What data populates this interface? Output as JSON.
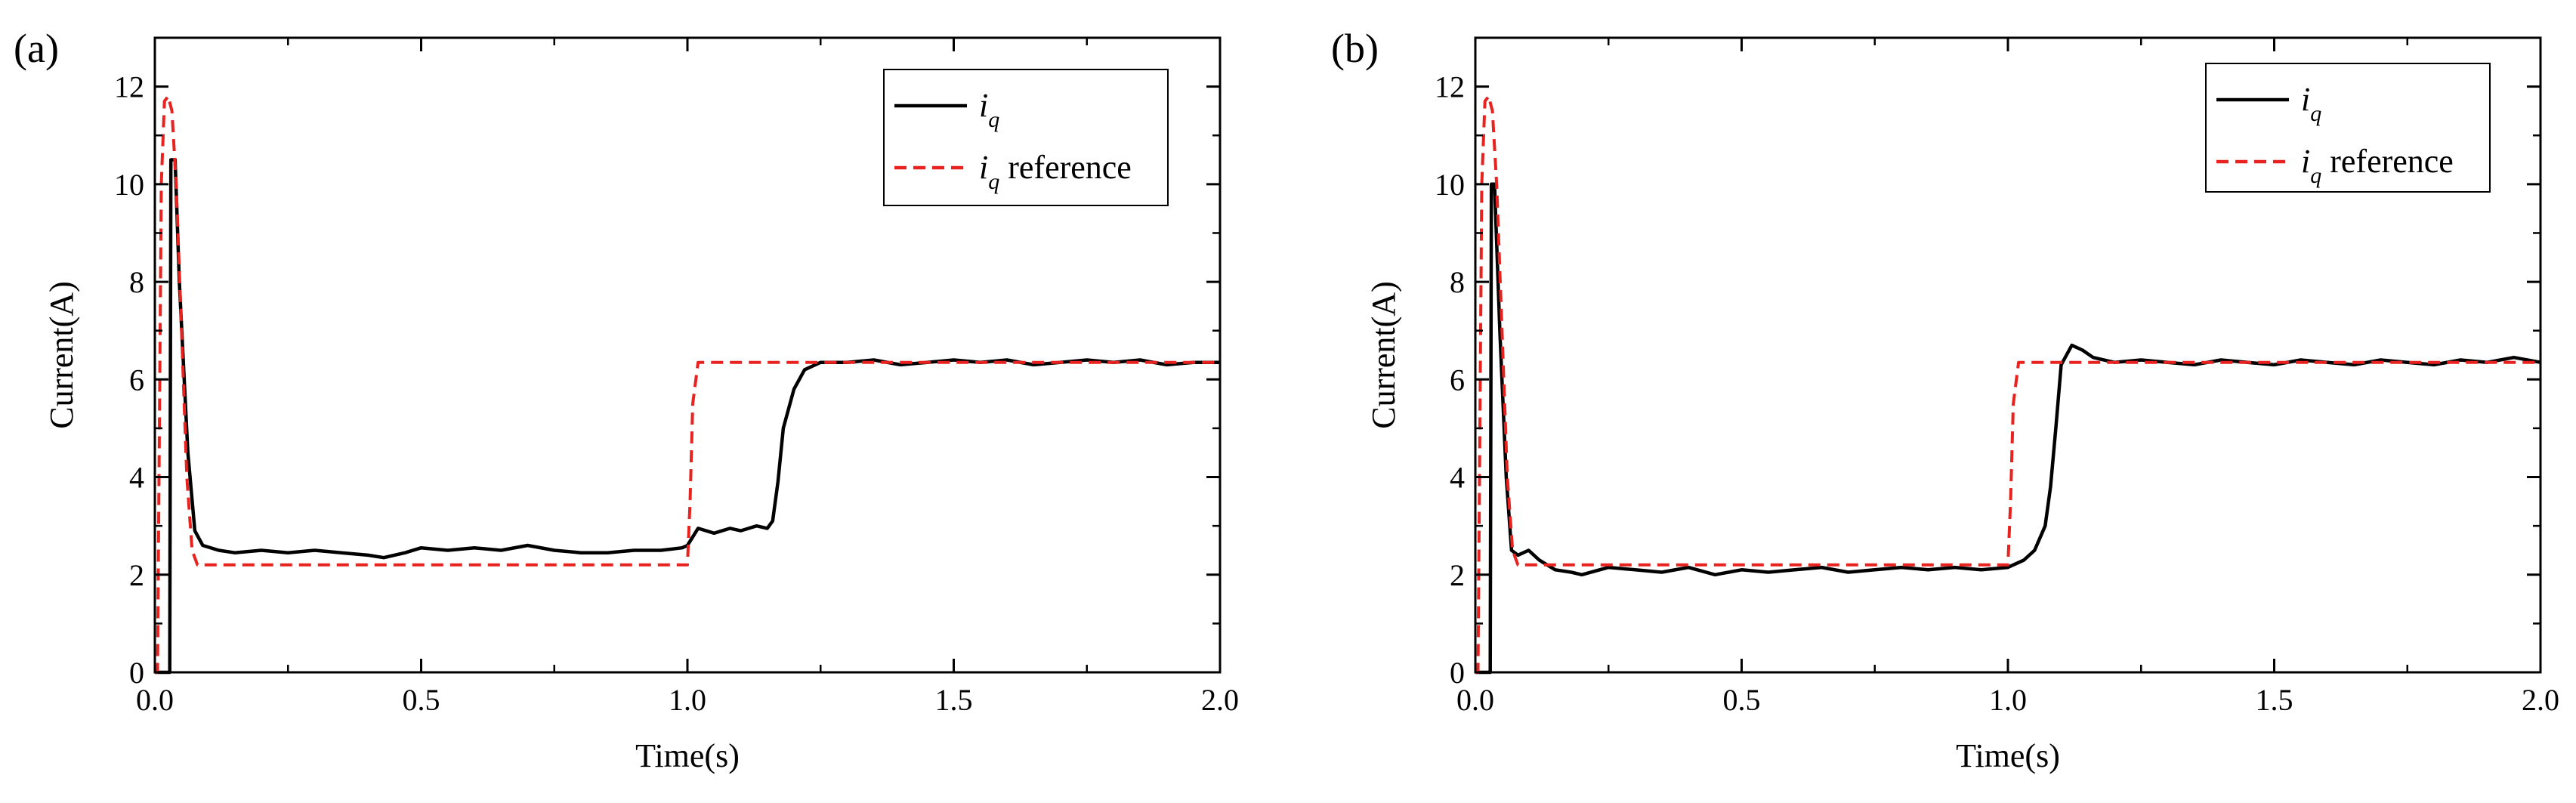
{
  "chart_data": [
    {
      "type": "line",
      "panel_label": "(a)",
      "xlabel": "Time(s)",
      "ylabel": "Current(A)",
      "xlim": [
        0,
        2.0
      ],
      "ylim": [
        0,
        13
      ],
      "xticks": [
        0.0,
        0.5,
        1.0,
        1.5,
        2.0
      ],
      "xtick_labels": [
        "0.0",
        "0.5",
        "1.0",
        "1.5",
        "2.0"
      ],
      "yticks": [
        0,
        2,
        4,
        6,
        8,
        10,
        12
      ],
      "ytick_labels": [
        "0",
        "2",
        "4",
        "6",
        "8",
        "10",
        "12"
      ],
      "legend_position": "top-right",
      "series": [
        {
          "name": "i_q",
          "legend_var": "i",
          "legend_sub": "q",
          "legend_suffix": "",
          "color": "#000000",
          "style": "solid",
          "x": [
            0.0,
            0.028,
            0.03,
            0.038,
            0.046,
            0.062,
            0.075,
            0.09,
            0.12,
            0.15,
            0.2,
            0.25,
            0.3,
            0.35,
            0.4,
            0.43,
            0.47,
            0.5,
            0.55,
            0.6,
            0.65,
            0.7,
            0.75,
            0.8,
            0.85,
            0.9,
            0.95,
            0.99,
            1.0,
            1.02,
            1.05,
            1.08,
            1.1,
            1.13,
            1.15,
            1.16,
            1.17,
            1.18,
            1.2,
            1.22,
            1.25,
            1.3,
            1.35,
            1.4,
            1.45,
            1.5,
            1.55,
            1.6,
            1.65,
            1.7,
            1.75,
            1.8,
            1.85,
            1.9,
            1.95,
            2.0
          ],
          "y": [
            0,
            0,
            10.5,
            10.5,
            8.0,
            4.5,
            2.9,
            2.6,
            2.5,
            2.45,
            2.5,
            2.45,
            2.5,
            2.45,
            2.4,
            2.35,
            2.45,
            2.55,
            2.5,
            2.55,
            2.5,
            2.6,
            2.5,
            2.45,
            2.45,
            2.5,
            2.5,
            2.55,
            2.6,
            2.95,
            2.85,
            2.95,
            2.9,
            3.0,
            2.95,
            3.1,
            3.9,
            5.0,
            5.8,
            6.2,
            6.35,
            6.35,
            6.4,
            6.3,
            6.35,
            6.4,
            6.35,
            6.4,
            6.3,
            6.35,
            6.4,
            6.35,
            6.4,
            6.3,
            6.35,
            6.35
          ]
        },
        {
          "name": "i_q reference",
          "legend_var": "i",
          "legend_sub": "q",
          "legend_suffix": " reference",
          "color": "#e8231f",
          "style": "dashed",
          "x": [
            0.0,
            0.005,
            0.012,
            0.018,
            0.025,
            0.032,
            0.04,
            0.05,
            0.06,
            0.07,
            0.08,
            1.0,
            1.005,
            1.01,
            1.02,
            2.0
          ],
          "y": [
            0,
            0,
            10.0,
            11.7,
            11.8,
            11.5,
            10.0,
            7.0,
            4.0,
            2.5,
            2.2,
            2.2,
            3.5,
            5.5,
            6.35,
            6.35
          ]
        }
      ]
    },
    {
      "type": "line",
      "panel_label": "(b)",
      "xlabel": "Time(s)",
      "ylabel": "Current(A)",
      "xlim": [
        0,
        2.0
      ],
      "ylim": [
        0,
        13
      ],
      "xticks": [
        0.0,
        0.5,
        1.0,
        1.5,
        2.0
      ],
      "xtick_labels": [
        "0.0",
        "0.5",
        "1.0",
        "1.5",
        "2.0"
      ],
      "yticks": [
        0,
        2,
        4,
        6,
        8,
        10,
        12
      ],
      "ytick_labels": [
        "0",
        "2",
        "4",
        "6",
        "8",
        "10",
        "12"
      ],
      "legend_position": "top-right",
      "series": [
        {
          "name": "i_q",
          "legend_var": "i",
          "legend_sub": "q",
          "legend_suffix": "",
          "color": "#000000",
          "style": "solid",
          "x": [
            0.0,
            0.028,
            0.03,
            0.036,
            0.046,
            0.058,
            0.068,
            0.08,
            0.1,
            0.12,
            0.15,
            0.18,
            0.2,
            0.25,
            0.3,
            0.35,
            0.4,
            0.45,
            0.5,
            0.55,
            0.6,
            0.65,
            0.7,
            0.75,
            0.8,
            0.85,
            0.9,
            0.95,
            1.0,
            1.03,
            1.05,
            1.07,
            1.08,
            1.09,
            1.1,
            1.12,
            1.14,
            1.16,
            1.2,
            1.25,
            1.3,
            1.35,
            1.4,
            1.45,
            1.5,
            1.55,
            1.6,
            1.65,
            1.7,
            1.75,
            1.8,
            1.85,
            1.9,
            1.95,
            2.0
          ],
          "y": [
            0,
            0,
            10.0,
            10.0,
            7.0,
            4.0,
            2.5,
            2.4,
            2.5,
            2.3,
            2.1,
            2.05,
            2.0,
            2.15,
            2.1,
            2.05,
            2.15,
            2.0,
            2.1,
            2.05,
            2.1,
            2.15,
            2.05,
            2.1,
            2.15,
            2.1,
            2.15,
            2.1,
            2.15,
            2.3,
            2.5,
            3.0,
            3.8,
            5.0,
            6.3,
            6.7,
            6.6,
            6.45,
            6.35,
            6.4,
            6.35,
            6.3,
            6.4,
            6.35,
            6.3,
            6.4,
            6.35,
            6.3,
            6.4,
            6.35,
            6.3,
            6.4,
            6.35,
            6.45,
            6.35
          ]
        },
        {
          "name": "i_q reference",
          "legend_var": "i",
          "legend_sub": "q",
          "legend_suffix": " reference",
          "color": "#e8231f",
          "style": "dashed",
          "x": [
            0.0,
            0.005,
            0.012,
            0.018,
            0.025,
            0.032,
            0.04,
            0.05,
            0.06,
            0.07,
            0.08,
            1.0,
            1.005,
            1.01,
            1.02,
            2.0
          ],
          "y": [
            0,
            0,
            10.0,
            11.7,
            11.8,
            11.5,
            10.0,
            7.0,
            4.0,
            2.5,
            2.2,
            2.2,
            3.5,
            5.5,
            6.35,
            6.35
          ]
        }
      ]
    }
  ]
}
